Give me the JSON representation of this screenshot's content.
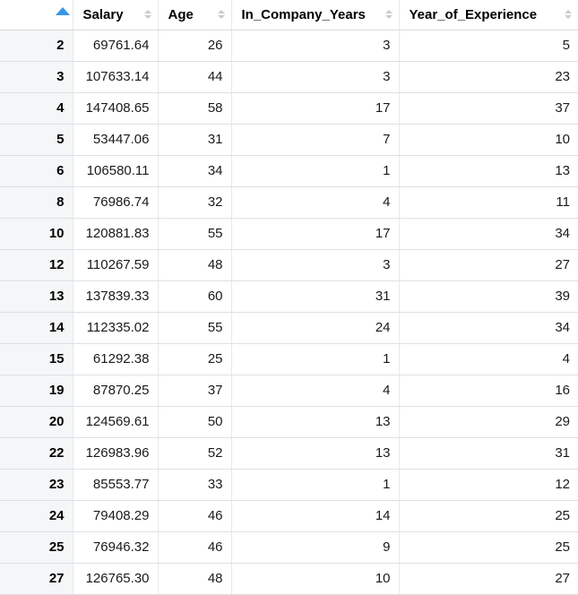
{
  "colors": {
    "active_sort_arrow": "#3795e8",
    "inactive_sort_arrow": "#c9cccf",
    "row_label_column_bg": "#f4f6f8",
    "horizontal_grid_line": "#dde0e2",
    "vertical_grid_line": "#e6e9ea",
    "header_border": "#d8dbdd",
    "header_text": "#000000",
    "cell_text": "#1a1a1a"
  },
  "table": {
    "sort_state": {
      "column": "row_names",
      "direction": "ascending"
    },
    "column_headers": [
      "Salary",
      "Age",
      "In_Company_Years",
      "Year_of_Experience"
    ],
    "rows": [
      [
        "2",
        "69761.64",
        "26",
        "3",
        "5"
      ],
      [
        "3",
        "107633.14",
        "44",
        "3",
        "23"
      ],
      [
        "4",
        "147408.65",
        "58",
        "17",
        "37"
      ],
      [
        "5",
        "53447.06",
        "31",
        "7",
        "10"
      ],
      [
        "6",
        "106580.11",
        "34",
        "1",
        "13"
      ],
      [
        "8",
        "76986.74",
        "32",
        "4",
        "11"
      ],
      [
        "10",
        "120881.83",
        "55",
        "17",
        "34"
      ],
      [
        "12",
        "110267.59",
        "48",
        "3",
        "27"
      ],
      [
        "13",
        "137839.33",
        "60",
        "31",
        "39"
      ],
      [
        "14",
        "112335.02",
        "55",
        "24",
        "34"
      ],
      [
        "15",
        "61292.38",
        "25",
        "1",
        "4"
      ],
      [
        "19",
        "87870.25",
        "37",
        "4",
        "16"
      ],
      [
        "20",
        "124569.61",
        "50",
        "13",
        "29"
      ],
      [
        "22",
        "126983.96",
        "52",
        "13",
        "31"
      ],
      [
        "23",
        "85553.77",
        "33",
        "1",
        "12"
      ],
      [
        "24",
        "79408.29",
        "46",
        "14",
        "25"
      ],
      [
        "25",
        "76946.32",
        "46",
        "9",
        "25"
      ],
      [
        "27",
        "126765.30",
        "48",
        "10",
        "27"
      ]
    ]
  }
}
